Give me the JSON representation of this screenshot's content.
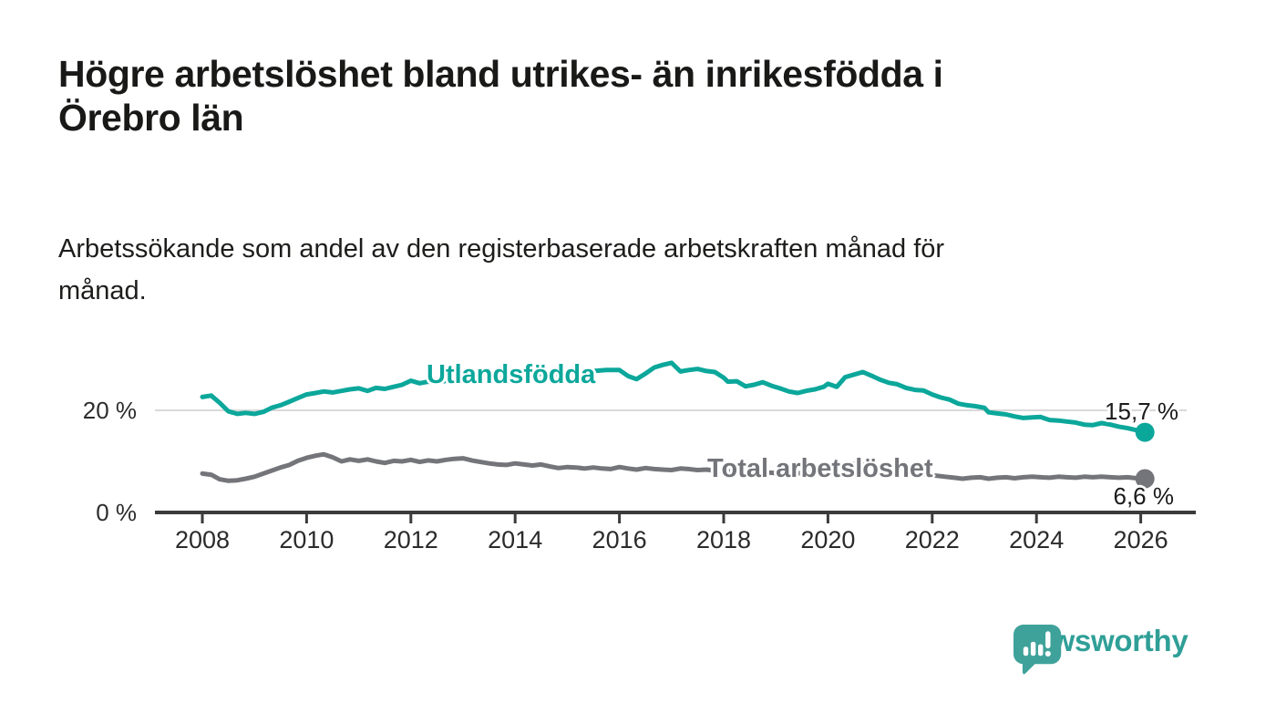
{
  "header": {
    "title_lines": [
      "Högre arbetslöshet bland utrikes- än inrikesfödda i",
      "Örebro län"
    ],
    "subtitle_lines": [
      "Arbetssökande som andel av den registerbaserade arbetskraften månad för",
      "månad."
    ]
  },
  "chart_data": {
    "type": "line",
    "title": "Högre arbetslöshet bland utrikes- än inrikesfödda i Örebro län",
    "subtitle": "Arbetssökande som andel av den registerbaserade arbetskraften månad för månad.",
    "unit": "%",
    "xlim": [
      2007.1,
      2027.1
    ],
    "ylim": [
      0,
      32
    ],
    "grid": "single horizontal gridline at 20 %",
    "legend_position": "inline-labels-on-lines",
    "xticks": [
      {
        "value": 2008,
        "label": "2008"
      },
      {
        "value": 2010,
        "label": "2010"
      },
      {
        "value": 2012,
        "label": "2012"
      },
      {
        "value": 2014,
        "label": "2014"
      },
      {
        "value": 2016,
        "label": "2016"
      },
      {
        "value": 2018,
        "label": "2018"
      },
      {
        "value": 2020,
        "label": "2020"
      },
      {
        "value": 2022,
        "label": "2022"
      },
      {
        "value": 2024,
        "label": "2024"
      },
      {
        "value": 2026,
        "label": "2026"
      }
    ],
    "yticks": [
      {
        "value": 0,
        "label": "0 %",
        "grid": false
      },
      {
        "value": 20,
        "label": "20 %",
        "grid": true
      }
    ],
    "series": [
      {
        "name": "Utlandsfödda",
        "color": "#0ca79b",
        "end_label": "15,7 %",
        "end_value": 15.7,
        "points": [
          [
            2008.0,
            22.6
          ],
          [
            2008.17,
            22.9
          ],
          [
            2008.33,
            21.5
          ],
          [
            2008.5,
            19.8
          ],
          [
            2008.67,
            19.3
          ],
          [
            2008.83,
            19.5
          ],
          [
            2009.0,
            19.3
          ],
          [
            2009.17,
            19.7
          ],
          [
            2009.33,
            20.5
          ],
          [
            2009.5,
            21.0
          ],
          [
            2009.67,
            21.7
          ],
          [
            2009.83,
            22.4
          ],
          [
            2010.0,
            23.1
          ],
          [
            2010.17,
            23.4
          ],
          [
            2010.33,
            23.7
          ],
          [
            2010.5,
            23.5
          ],
          [
            2010.67,
            23.8
          ],
          [
            2010.83,
            24.1
          ],
          [
            2011.0,
            24.3
          ],
          [
            2011.17,
            23.8
          ],
          [
            2011.33,
            24.4
          ],
          [
            2011.5,
            24.2
          ],
          [
            2011.67,
            24.6
          ],
          [
            2011.83,
            25.0
          ],
          [
            2012.0,
            25.8
          ],
          [
            2012.17,
            25.3
          ],
          [
            2012.33,
            25.6
          ],
          [
            2012.5,
            25.5
          ],
          [
            2012.75,
            25.9
          ],
          [
            2013.0,
            26.2
          ],
          [
            2013.25,
            26.0
          ],
          [
            2013.5,
            26.5
          ],
          [
            2013.75,
            26.4
          ],
          [
            2014.0,
            26.8
          ],
          [
            2014.25,
            26.7
          ],
          [
            2014.5,
            27.1
          ],
          [
            2014.75,
            27.0
          ],
          [
            2015.0,
            27.4
          ],
          [
            2015.25,
            27.3
          ],
          [
            2015.5,
            27.7
          ],
          [
            2015.75,
            27.9
          ],
          [
            2016.0,
            27.9
          ],
          [
            2016.17,
            26.7
          ],
          [
            2016.33,
            26.1
          ],
          [
            2016.5,
            27.2
          ],
          [
            2016.67,
            28.4
          ],
          [
            2016.83,
            28.9
          ],
          [
            2017.0,
            29.3
          ],
          [
            2017.17,
            27.6
          ],
          [
            2017.33,
            27.9
          ],
          [
            2017.5,
            28.1
          ],
          [
            2017.67,
            27.7
          ],
          [
            2017.83,
            27.5
          ],
          [
            2018.0,
            26.4
          ],
          [
            2018.08,
            25.6
          ],
          [
            2018.25,
            25.7
          ],
          [
            2018.42,
            24.7
          ],
          [
            2018.58,
            25.0
          ],
          [
            2018.75,
            25.5
          ],
          [
            2018.92,
            24.8
          ],
          [
            2019.08,
            24.3
          ],
          [
            2019.25,
            23.7
          ],
          [
            2019.42,
            23.4
          ],
          [
            2019.58,
            23.8
          ],
          [
            2019.75,
            24.1
          ],
          [
            2019.92,
            24.6
          ],
          [
            2020.0,
            25.2
          ],
          [
            2020.17,
            24.6
          ],
          [
            2020.33,
            26.5
          ],
          [
            2020.5,
            27.0
          ],
          [
            2020.67,
            27.5
          ],
          [
            2020.83,
            26.8
          ],
          [
            2021.0,
            26.0
          ],
          [
            2021.17,
            25.4
          ],
          [
            2021.33,
            25.1
          ],
          [
            2021.5,
            24.4
          ],
          [
            2021.67,
            24.0
          ],
          [
            2021.83,
            23.9
          ],
          [
            2022.0,
            23.1
          ],
          [
            2022.17,
            22.5
          ],
          [
            2022.33,
            22.1
          ],
          [
            2022.5,
            21.3
          ],
          [
            2022.67,
            21.0
          ],
          [
            2022.83,
            20.8
          ],
          [
            2023.0,
            20.5
          ],
          [
            2023.08,
            19.6
          ],
          [
            2023.25,
            19.4
          ],
          [
            2023.42,
            19.2
          ],
          [
            2023.58,
            18.8
          ],
          [
            2023.75,
            18.5
          ],
          [
            2023.92,
            18.6
          ],
          [
            2024.08,
            18.7
          ],
          [
            2024.25,
            18.1
          ],
          [
            2024.42,
            18.0
          ],
          [
            2024.58,
            17.8
          ],
          [
            2024.75,
            17.6
          ],
          [
            2024.92,
            17.2
          ],
          [
            2025.08,
            17.1
          ],
          [
            2025.25,
            17.5
          ],
          [
            2025.42,
            17.2
          ],
          [
            2025.58,
            16.8
          ],
          [
            2025.75,
            16.5
          ],
          [
            2025.92,
            16.1
          ],
          [
            2026.08,
            15.7
          ]
        ]
      },
      {
        "name": "Total arbetslöshet",
        "color": "#74757a",
        "end_label": "6,6 %",
        "end_value": 6.6,
        "points": [
          [
            2008.0,
            7.6
          ],
          [
            2008.17,
            7.4
          ],
          [
            2008.33,
            6.5
          ],
          [
            2008.5,
            6.2
          ],
          [
            2008.67,
            6.3
          ],
          [
            2008.83,
            6.6
          ],
          [
            2009.0,
            7.0
          ],
          [
            2009.17,
            7.6
          ],
          [
            2009.33,
            8.2
          ],
          [
            2009.5,
            8.8
          ],
          [
            2009.67,
            9.3
          ],
          [
            2009.83,
            10.1
          ],
          [
            2010.0,
            10.7
          ],
          [
            2010.17,
            11.1
          ],
          [
            2010.33,
            11.4
          ],
          [
            2010.5,
            10.8
          ],
          [
            2010.67,
            10.0
          ],
          [
            2010.83,
            10.4
          ],
          [
            2011.0,
            10.1
          ],
          [
            2011.17,
            10.4
          ],
          [
            2011.33,
            10.0
          ],
          [
            2011.5,
            9.7
          ],
          [
            2011.67,
            10.1
          ],
          [
            2011.83,
            10.0
          ],
          [
            2012.0,
            10.3
          ],
          [
            2012.17,
            9.9
          ],
          [
            2012.33,
            10.2
          ],
          [
            2012.5,
            10.0
          ],
          [
            2012.67,
            10.3
          ],
          [
            2012.83,
            10.5
          ],
          [
            2013.0,
            10.6
          ],
          [
            2013.17,
            10.2
          ],
          [
            2013.33,
            9.9
          ],
          [
            2013.5,
            9.6
          ],
          [
            2013.67,
            9.4
          ],
          [
            2013.83,
            9.3
          ],
          [
            2014.0,
            9.6
          ],
          [
            2014.17,
            9.4
          ],
          [
            2014.33,
            9.2
          ],
          [
            2014.5,
            9.4
          ],
          [
            2014.67,
            9.0
          ],
          [
            2014.83,
            8.7
          ],
          [
            2015.0,
            8.9
          ],
          [
            2015.17,
            8.8
          ],
          [
            2015.33,
            8.6
          ],
          [
            2015.5,
            8.8
          ],
          [
            2015.67,
            8.6
          ],
          [
            2015.83,
            8.5
          ],
          [
            2016.0,
            8.9
          ],
          [
            2016.17,
            8.6
          ],
          [
            2016.33,
            8.4
          ],
          [
            2016.5,
            8.7
          ],
          [
            2016.67,
            8.5
          ],
          [
            2016.83,
            8.4
          ],
          [
            2017.0,
            8.3
          ],
          [
            2017.17,
            8.6
          ],
          [
            2017.33,
            8.5
          ],
          [
            2017.5,
            8.3
          ],
          [
            2017.67,
            8.4
          ],
          [
            2017.83,
            8.2
          ],
          [
            2018.0,
            8.1
          ],
          [
            2018.25,
            8.0
          ],
          [
            2018.5,
            7.8
          ],
          [
            2018.75,
            7.9
          ],
          [
            2019.0,
            7.7
          ],
          [
            2019.25,
            7.6
          ],
          [
            2019.5,
            7.7
          ],
          [
            2019.75,
            7.8
          ],
          [
            2020.0,
            8.0
          ],
          [
            2020.25,
            9.2
          ],
          [
            2020.5,
            9.5
          ],
          [
            2020.75,
            9.3
          ],
          [
            2021.0,
            8.9
          ],
          [
            2021.25,
            8.4
          ],
          [
            2021.5,
            7.9
          ],
          [
            2021.75,
            7.5
          ],
          [
            2021.92,
            7.4
          ],
          [
            2022.08,
            7.2
          ],
          [
            2022.25,
            7.0
          ],
          [
            2022.42,
            6.8
          ],
          [
            2022.58,
            6.6
          ],
          [
            2022.75,
            6.8
          ],
          [
            2022.92,
            6.9
          ],
          [
            2023.08,
            6.6
          ],
          [
            2023.25,
            6.8
          ],
          [
            2023.42,
            6.9
          ],
          [
            2023.58,
            6.7
          ],
          [
            2023.75,
            6.9
          ],
          [
            2023.92,
            7.0
          ],
          [
            2024.08,
            6.9
          ],
          [
            2024.25,
            6.8
          ],
          [
            2024.42,
            7.0
          ],
          [
            2024.58,
            6.9
          ],
          [
            2024.75,
            6.8
          ],
          [
            2024.92,
            7.0
          ],
          [
            2025.08,
            6.9
          ],
          [
            2025.25,
            7.0
          ],
          [
            2025.42,
            6.9
          ],
          [
            2025.58,
            6.8
          ],
          [
            2025.75,
            6.9
          ],
          [
            2025.92,
            6.7
          ],
          [
            2026.08,
            6.6
          ]
        ]
      }
    ]
  },
  "footer": {
    "brand": "Newsworthy",
    "brand_color": "#2f9f97",
    "logo_icon": "newsworthy-speech-bubble-bar-chart-icon"
  }
}
